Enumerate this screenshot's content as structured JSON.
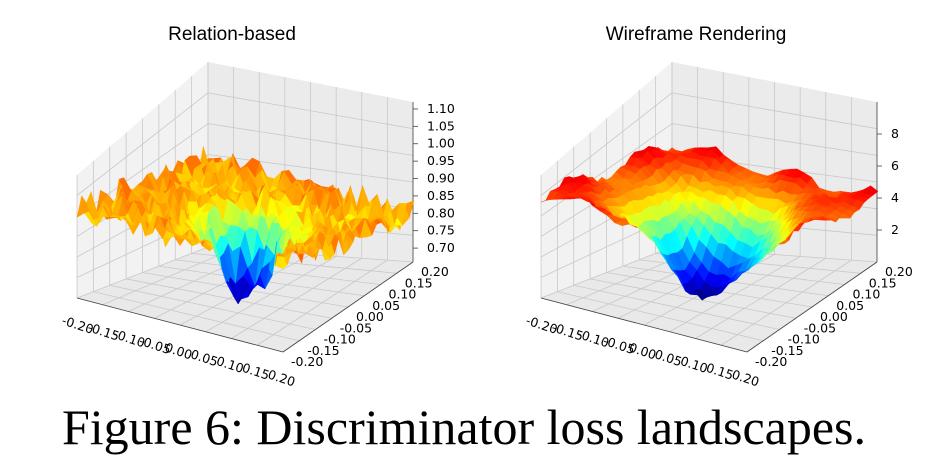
{
  "caption": "Figure 6: Discriminator loss landscapes.",
  "chart_data": [
    {
      "type": "surface3d",
      "title": "Relation-based",
      "x_ticks": [
        "-0.20",
        "-0.15",
        "-0.10",
        "-0.05",
        "0.00",
        "0.05",
        "0.10",
        "0.15",
        "0.20"
      ],
      "y_ticks": [
        "0.20",
        "0.15",
        "0.10",
        "0.05",
        "0.00",
        "-0.05",
        "-0.10",
        "-0.15",
        "-0.20"
      ],
      "z_ticks": [
        "1.10",
        "1.05",
        "1.00",
        "0.95",
        "0.90",
        "0.85",
        "0.80",
        "0.75",
        "0.70"
      ],
      "xlim": [
        -0.2,
        0.2
      ],
      "ylim": [
        -0.2,
        0.2
      ],
      "zlim": [
        0.66,
        1.12
      ],
      "surface": "noisy plateau near 1.0 with a single sharp well reaching about 0.67 at the centre",
      "plateau": 0.99,
      "minimum": 0.67,
      "minimum_at": [
        0.0,
        0.0
      ],
      "colormap": "jet",
      "grid": true
    },
    {
      "type": "surface3d",
      "title": "Wireframe Rendering",
      "x_ticks": [
        "-0.20",
        "-0.15",
        "-0.10",
        "-0.05",
        "0.00",
        "0.05",
        "0.10",
        "0.15",
        "0.20"
      ],
      "y_ticks": [
        "0.20",
        "0.15",
        "0.10",
        "0.05",
        "0.00",
        "-0.05",
        "-0.10",
        "-0.15",
        "-0.20"
      ],
      "z_ticks": [
        "8",
        "6",
        "4",
        "2"
      ],
      "xlim": [
        -0.2,
        0.2
      ],
      "ylim": [
        -0.2,
        0.2
      ],
      "zlim": [
        0,
        10
      ],
      "surface": "broad smooth bowl with raised rim near 8-9 and minimum near 0 at the centre",
      "rim": 8.5,
      "minimum": 0.2,
      "minimum_at": [
        0.0,
        0.0
      ],
      "colormap": "jet",
      "grid": true
    }
  ]
}
